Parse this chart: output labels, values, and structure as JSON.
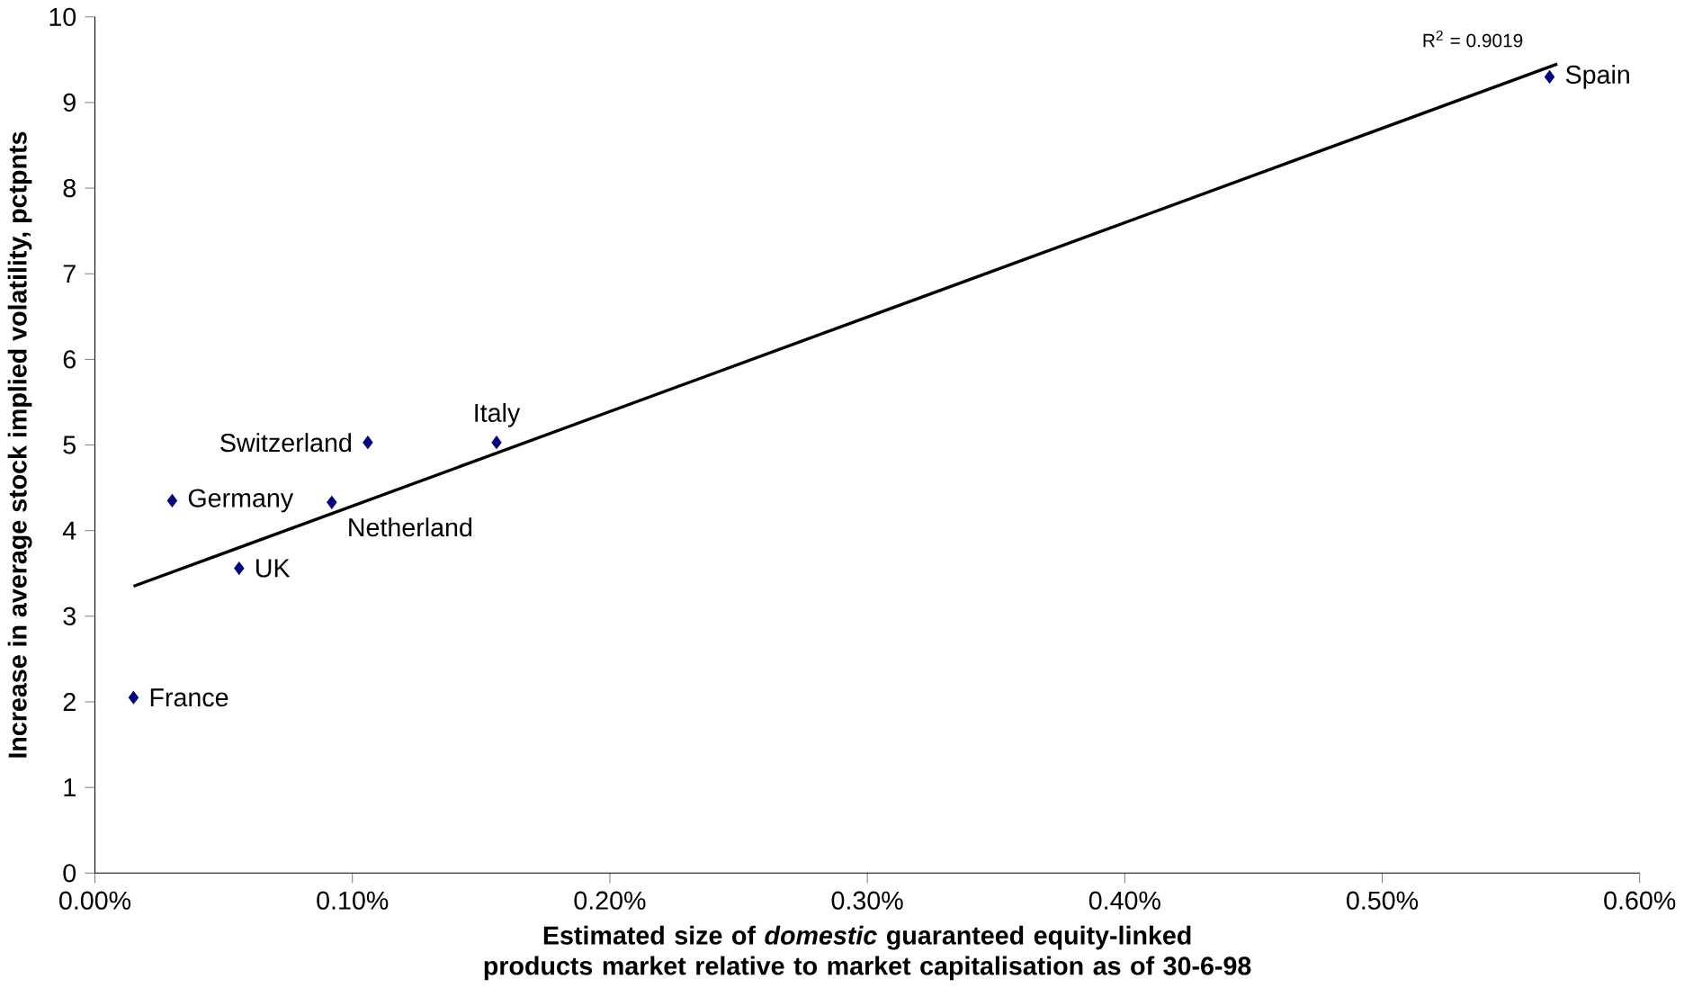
{
  "chart_data": {
    "type": "scatter",
    "xlabel": "Estimated size of *domestic* guaranteed equity-linked products market relative to market capitalisation as of 30-6-98",
    "ylabel": "Increase in average stock implied volatility, pctpnts",
    "xlim": [
      0,
      0.6
    ],
    "ylim": [
      0,
      10
    ],
    "xticks": [
      {
        "value": 0,
        "label": "0.00%"
      },
      {
        "value": 0.1,
        "label": "0.10%"
      },
      {
        "value": 0.2,
        "label": "0.20%"
      },
      {
        "value": 0.3,
        "label": "0.30%"
      },
      {
        "value": 0.4,
        "label": "0.40%"
      },
      {
        "value": 0.5,
        "label": "0.50%"
      },
      {
        "value": 0.6,
        "label": "0.60%"
      }
    ],
    "yticks": [
      0,
      1,
      2,
      3,
      4,
      5,
      6,
      7,
      8,
      9,
      10
    ],
    "marker": "diamond",
    "grid": false,
    "series": [
      {
        "name": "France",
        "color": "#000080",
        "x": [
          0.015
        ],
        "values": [
          2.05
        ]
      },
      {
        "name": "Germany",
        "color": "#000080",
        "x": [
          0.03
        ],
        "values": [
          4.35
        ]
      },
      {
        "name": "UK",
        "color": "#000080",
        "x": [
          0.056
        ],
        "values": [
          3.56
        ]
      },
      {
        "name": "Netherland",
        "color": "#000080",
        "x": [
          0.092
        ],
        "values": [
          4.33
        ]
      },
      {
        "name": "Switzerland",
        "color": "#000080",
        "x": [
          0.106
        ],
        "values": [
          5.03
        ]
      },
      {
        "name": "Italy",
        "color": "#000080",
        "x": [
          0.156
        ],
        "values": [
          5.03
        ]
      },
      {
        "name": "Spain",
        "color": "#000080",
        "x": [
          0.565
        ],
        "values": [
          9.3
        ]
      },
      {
        "type": "line",
        "marker": "none",
        "color": "#000000",
        "x": [
          0.015,
          0.568
        ],
        "values": [
          3.35,
          9.45
        ]
      }
    ],
    "annotations": [
      "R$^{2}$ = 0.9019"
    ]
  }
}
